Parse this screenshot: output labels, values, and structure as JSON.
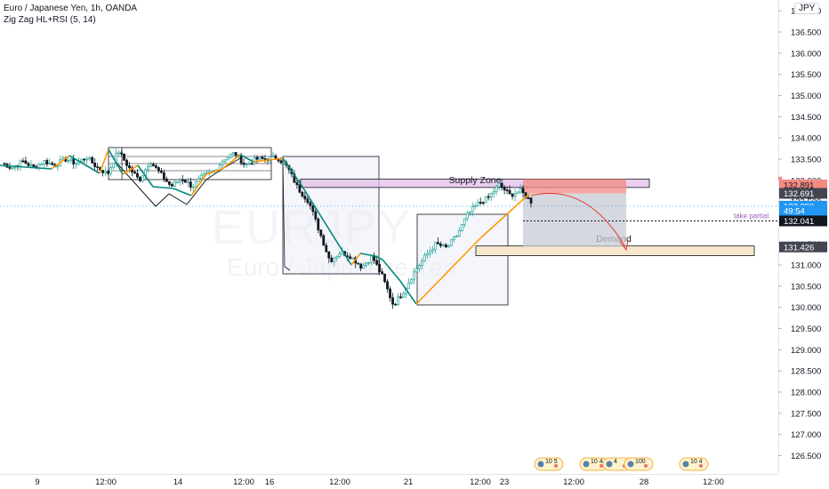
{
  "header": {
    "symbol_line": "Euro / Japanese Yen, 1h, OANDA",
    "indicator_line": "Zig Zag HL+RSI (5, 14)",
    "currency": "JPY"
  },
  "watermark": {
    "big": "EURJPY",
    "small": "Euro / Japanese Yen"
  },
  "colors": {
    "up": "#26a69a",
    "down": "#131722",
    "zigzag_up": "#ff9800",
    "zigzag_down": "#00897b",
    "supply": "#e1bee7",
    "demand": "#f5e6cc",
    "target": "#f28b82",
    "stop_zone": "#c7cbd4",
    "last_price": "#2196f3",
    "projection": "#e53935"
  },
  "chart_data": {
    "type": "candlestick",
    "y_axis": {
      "min": 126.5,
      "max": 137.0,
      "step": 0.5,
      "tick_labels": [
        "137.000",
        "136.500",
        "136.000",
        "135.500",
        "135.000",
        "134.500",
        "134.000",
        "133.500",
        "133.000",
        "132.500",
        "132.000",
        "131.500",
        "131.000",
        "130.500",
        "130.000",
        "129.500",
        "129.000",
        "128.500",
        "128.000",
        "127.500",
        "127.000",
        "126.500"
      ]
    },
    "x_axis": {
      "tick_labels": [
        "9",
        "12:00",
        "14",
        "12:00",
        "16",
        "12:00",
        "21",
        "12:00",
        "23",
        "12:00",
        "28",
        "12:00"
      ]
    },
    "price_path": [
      133.4,
      133.3,
      133.45,
      133.3,
      133.45,
      133.35,
      133.5,
      133.4,
      133.55,
      133.3,
      133.15,
      133.7,
      133.3,
      133.0,
      133.45,
      133.15,
      132.85,
      133.05,
      132.85,
      133.1,
      133.2,
      133.5,
      133.65,
      133.35,
      133.5,
      133.5,
      133.55,
      133.3,
      132.8,
      132.5,
      131.8,
      131.1,
      131.3,
      131.2,
      130.95,
      131.2,
      130.7,
      130.05,
      130.4,
      130.85,
      131.2,
      131.5,
      131.4,
      131.7,
      132.2,
      132.45,
      132.6,
      132.9,
      132.65,
      132.75,
      132.5
    ],
    "annotations": {
      "supply_zone": {
        "label": "Supply Zone",
        "top": 133.03,
        "bottom": 132.83
      },
      "demand_zone": {
        "label": "Demand",
        "top": 131.45,
        "bottom": 131.22
      },
      "target_zone": {
        "top": 133.03,
        "bottom": 132.69
      },
      "take_partial": {
        "label": "take partial",
        "price": 132.04
      },
      "projection_end": 131.43
    },
    "price_labels": [
      {
        "text": "132.891",
        "price": 132.891,
        "kind": "red"
      },
      {
        "text": "132.691",
        "price": 132.691,
        "kind": "dark"
      },
      {
        "text": "132.390",
        "price": 132.39,
        "kind": "blue"
      },
      {
        "text": "49:54",
        "price": 132.28,
        "kind": "blue"
      },
      {
        "text": "132.041",
        "price": 132.041,
        "kind": "black"
      },
      {
        "text": "131.426",
        "price": 131.426,
        "kind": "dark"
      }
    ],
    "events": [
      "10 5",
      "10 4",
      "4",
      "100",
      "10 4"
    ]
  }
}
